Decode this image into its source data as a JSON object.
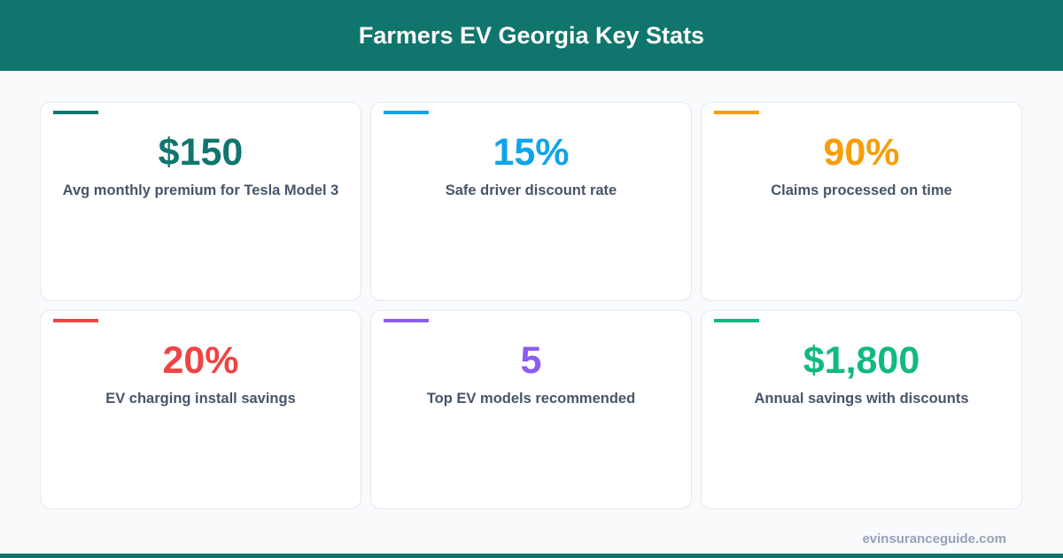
{
  "header": {
    "title": "Farmers EV Georgia Key Stats"
  },
  "stats": [
    {
      "value": "$150",
      "label": "Avg monthly premium for Tesla Model 3",
      "color": "#10766d"
    },
    {
      "value": "15%",
      "label": "Safe driver discount rate",
      "color": "#0ea5e9"
    },
    {
      "value": "90%",
      "label": "Claims processed on time",
      "color": "#f59e0b"
    },
    {
      "value": "20%",
      "label": "EV charging install savings",
      "color": "#ef4444"
    },
    {
      "value": "5",
      "label": "Top EV models recommended",
      "color": "#8b5cf6"
    },
    {
      "value": "$1,800",
      "label": "Annual savings with discounts",
      "color": "#10b981"
    }
  ],
  "footer": {
    "site": "evinsuranceguide.com"
  }
}
